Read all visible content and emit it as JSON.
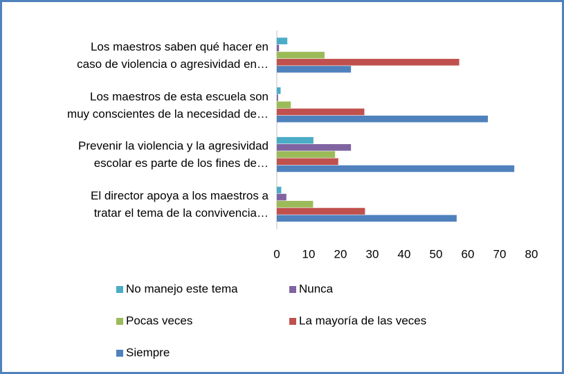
{
  "chart_data": {
    "type": "hbar",
    "categories": [
      "Los maestros saben qué hacer en\ncaso de violencia o agresividad en…",
      "Los maestros de esta escuela son\nmuy conscientes de la necesidad de…",
      "Prevenir la violencia y la agresividad\nescolar es parte de los fines de…",
      "El director apoya a los maestros a\ntratar el tema de la convivencia…"
    ],
    "series": [
      {
        "name": "No manejo este tema",
        "color": "#4bacc6",
        "values": [
          3.3,
          1.2,
          11.5,
          1.4
        ]
      },
      {
        "name": "Nunca",
        "color": "#8064a2",
        "values": [
          0.7,
          0.4,
          23.3,
          3.0
        ]
      },
      {
        "name": "Pocas veces",
        "color": "#9bbb59",
        "values": [
          15,
          4.4,
          18.3,
          11.4
        ]
      },
      {
        "name": "La mayoría de las veces",
        "color": "#c0504d",
        "values": [
          57.3,
          27.5,
          19.3,
          27.7
        ]
      },
      {
        "name": "Siempre",
        "color": "#4f81bd",
        "values": [
          23.3,
          66.3,
          74.6,
          56.5
        ]
      }
    ],
    "xlim": [
      0,
      80
    ],
    "xticks": [
      0,
      10,
      20,
      30,
      40,
      50,
      60,
      70,
      80
    ],
    "legend": "bottom"
  }
}
